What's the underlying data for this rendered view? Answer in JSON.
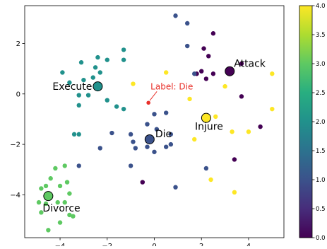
{
  "chart_data": {
    "type": "scatter",
    "title": "",
    "xlabel": "",
    "ylabel": "",
    "xlim": [
      -5.5,
      5.5
    ],
    "ylim": [
      -5.7,
      3.5
    ],
    "x_ticks": [
      -4,
      -2,
      0,
      2,
      4
    ],
    "x_tick_labels": [
      "−4",
      "−2",
      "0",
      "2",
      "4"
    ],
    "y_ticks": [
      -4,
      -2,
      0,
      2
    ],
    "y_tick_labels": [
      "−4",
      "−2",
      "0",
      "2"
    ],
    "grid": false,
    "colormap": "viridis",
    "colorbar": {
      "min": 0.0,
      "max": 4.0,
      "ticks": [
        0.0,
        0.5,
        1.0,
        1.5,
        2.0,
        2.5,
        3.0,
        3.5,
        4.0
      ],
      "tick_labels": [
        "0.0",
        "0.5",
        "1.0",
        "1.5",
        "2.0",
        "2.5",
        "3.0",
        "3.5",
        "4.0"
      ]
    },
    "points": [
      {
        "x": 0.9,
        "y": 3.1,
        "c": 1
      },
      {
        "x": 1.4,
        "y": 2.8,
        "c": 1
      },
      {
        "x": 2.5,
        "y": 2.4,
        "c": 0
      },
      {
        "x": 1.4,
        "y": 1.9,
        "c": 1
      },
      {
        "x": 2.1,
        "y": 1.8,
        "c": 0
      },
      {
        "x": 2.3,
        "y": 1.5,
        "c": 0
      },
      {
        "x": 1.8,
        "y": 0.8,
        "c": 0
      },
      {
        "x": 2.2,
        "y": 0.6,
        "c": 0
      },
      {
        "x": 2.5,
        "y": 0.8,
        "c": 0
      },
      {
        "x": 2.0,
        "y": 0.9,
        "c": 0
      },
      {
        "x": 3.7,
        "y": 1.2,
        "c": 0
      },
      {
        "x": 3.7,
        "y": -0.1,
        "c": 0
      },
      {
        "x": 4.5,
        "y": -1.3,
        "c": 0
      },
      {
        "x": 3.4,
        "y": -2.6,
        "c": 0
      },
      {
        "x": -0.5,
        "y": -3.5,
        "c": 0
      },
      {
        "x": 0.5,
        "y": 0.85,
        "c": 4
      },
      {
        "x": -0.9,
        "y": 0.4,
        "c": 4
      },
      {
        "x": 5.0,
        "y": 0.8,
        "c": 4
      },
      {
        "x": 3.0,
        "y": 0.3,
        "c": 4
      },
      {
        "x": 1.5,
        "y": -0.2,
        "c": 4
      },
      {
        "x": 5.0,
        "y": -0.6,
        "c": 4
      },
      {
        "x": 2.6,
        "y": -0.9,
        "c": 4
      },
      {
        "x": 3.3,
        "y": -1.5,
        "c": 4
      },
      {
        "x": 4.0,
        "y": -1.5,
        "c": 4
      },
      {
        "x": 1.7,
        "y": -1.8,
        "c": 4
      },
      {
        "x": 2.4,
        "y": -3.4,
        "c": 4
      },
      {
        "x": 3.4,
        "y": -3.9,
        "c": 4
      },
      {
        "x": -3.9,
        "y": 0.85,
        "c": 2
      },
      {
        "x": -3.6,
        "y": 0.45,
        "c": 2
      },
      {
        "x": -3.0,
        "y": 0.55,
        "c": 2
      },
      {
        "x": -2.6,
        "y": 0.65,
        "c": 2
      },
      {
        "x": -2.3,
        "y": 0.85,
        "c": 2
      },
      {
        "x": -2.5,
        "y": 1.05,
        "c": 2
      },
      {
        "x": -2.0,
        "y": 1.35,
        "c": 2
      },
      {
        "x": -3.1,
        "y": 1.25,
        "c": 2
      },
      {
        "x": -2.4,
        "y": 1.45,
        "c": 2
      },
      {
        "x": -1.3,
        "y": 1.75,
        "c": 2
      },
      {
        "x": -1.3,
        "y": 1.35,
        "c": 2
      },
      {
        "x": -3.2,
        "y": -0.05,
        "c": 2
      },
      {
        "x": -2.8,
        "y": -0.05,
        "c": 2
      },
      {
        "x": -3.2,
        "y": -0.45,
        "c": 2
      },
      {
        "x": -2.0,
        "y": -0.25,
        "c": 2
      },
      {
        "x": -1.6,
        "y": -0.5,
        "c": 2
      },
      {
        "x": -1.3,
        "y": -0.6,
        "c": 2
      },
      {
        "x": -3.4,
        "y": -1.6,
        "c": 2
      },
      {
        "x": -3.2,
        "y": -1.6,
        "c": 2
      },
      {
        "x": 0.0,
        "y": -0.8,
        "c": 1
      },
      {
        "x": 0.5,
        "y": -0.75,
        "c": 1
      },
      {
        "x": -0.3,
        "y": -1.2,
        "c": 1
      },
      {
        "x": 0.1,
        "y": -1.4,
        "c": 1
      },
      {
        "x": -1.8,
        "y": -1.55,
        "c": 1
      },
      {
        "x": -1.0,
        "y": -1.6,
        "c": 1
      },
      {
        "x": -0.9,
        "y": -1.9,
        "c": 1
      },
      {
        "x": 0.7,
        "y": -1.6,
        "c": 1
      },
      {
        "x": -2.3,
        "y": -2.15,
        "c": 1
      },
      {
        "x": -0.8,
        "y": -2.15,
        "c": 1
      },
      {
        "x": -0.3,
        "y": -2.1,
        "c": 1
      },
      {
        "x": 0.0,
        "y": -2.3,
        "c": 1
      },
      {
        "x": 0.5,
        "y": -2.1,
        "c": 1
      },
      {
        "x": 0.7,
        "y": -2.0,
        "c": 1
      },
      {
        "x": -3.2,
        "y": -2.85,
        "c": 1
      },
      {
        "x": -1.0,
        "y": -2.85,
        "c": 1
      },
      {
        "x": 0.9,
        "y": -3.7,
        "c": 1
      },
      {
        "x": 2.2,
        "y": -2.95,
        "c": 1
      },
      {
        "x": 1.7,
        "y": 0.8,
        "c": 1
      },
      {
        "x": -3.8,
        "y": -2.85,
        "c": 3
      },
      {
        "x": -4.8,
        "y": -3.75,
        "c": 3
      },
      {
        "x": -4.6,
        "y": -3.65,
        "c": 3
      },
      {
        "x": -4.4,
        "y": -3.35,
        "c": 3
      },
      {
        "x": -4.2,
        "y": -2.95,
        "c": 3
      },
      {
        "x": -4.0,
        "y": -3.65,
        "c": 3
      },
      {
        "x": -3.7,
        "y": -3.5,
        "c": 3
      },
      {
        "x": -3.6,
        "y": -3.95,
        "c": 3
      },
      {
        "x": -4.6,
        "y": -4.35,
        "c": 3
      },
      {
        "x": -4.1,
        "y": -4.3,
        "c": 3
      },
      {
        "x": -4.9,
        "y": -4.3,
        "c": 3
      },
      {
        "x": -3.8,
        "y": -4.3,
        "c": 3
      },
      {
        "x": -4.8,
        "y": -4.7,
        "c": 3
      },
      {
        "x": -3.6,
        "y": -4.8,
        "c": 3
      },
      {
        "x": -3.45,
        "y": -4.85,
        "c": 3
      },
      {
        "x": -4.0,
        "y": -5.1,
        "c": 3
      },
      {
        "x": -4.5,
        "y": -5.4,
        "c": 3
      }
    ],
    "highlighted": [
      {
        "x": 3.2,
        "y": 0.9,
        "c": 0,
        "label": "Attack"
      },
      {
        "x": -2.4,
        "y": 0.3,
        "c": 2,
        "label": "Execute"
      },
      {
        "x": 2.2,
        "y": -0.95,
        "c": 4,
        "label": "Injure"
      },
      {
        "x": -0.2,
        "y": -1.8,
        "c": 1,
        "label": "Die"
      },
      {
        "x": -4.5,
        "y": -4.05,
        "c": 3,
        "label": "Divorce"
      }
    ],
    "query_point": {
      "x": -0.25,
      "y": -0.35,
      "label": "Label: Die",
      "color": "#e8302a"
    }
  }
}
